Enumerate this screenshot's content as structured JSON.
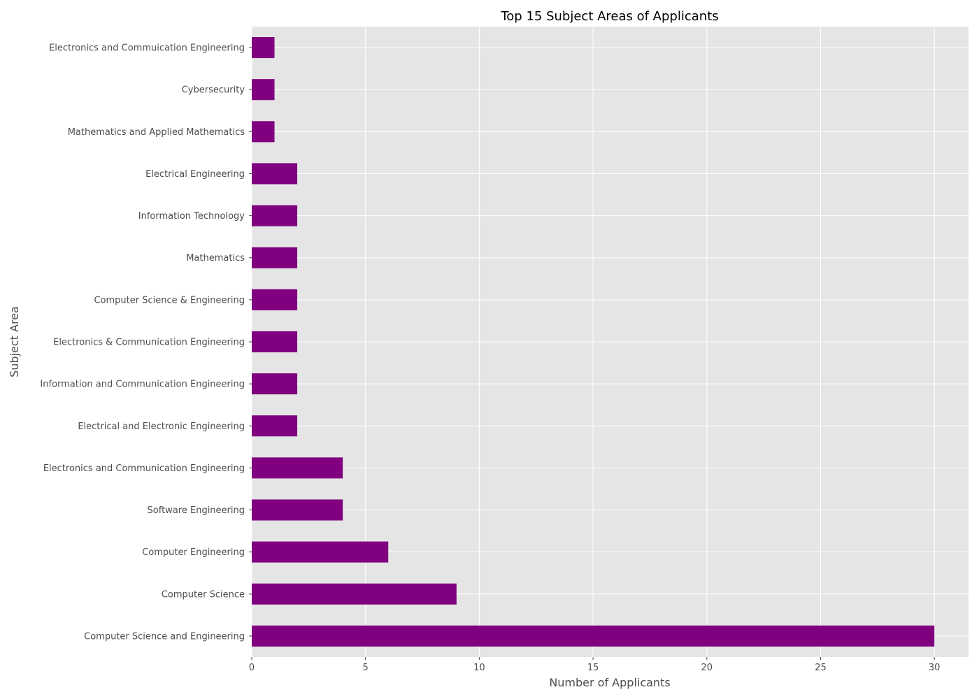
{
  "chart_data": {
    "type": "bar",
    "orientation": "horizontal",
    "title": "Top 15 Subject Areas of Applicants",
    "xlabel": "Number of Applicants",
    "ylabel": "Subject Area",
    "categories": [
      "Computer Science and Engineering",
      "Computer Science",
      "Computer Engineering",
      "Software Engineering",
      "Electronics and Communication Engineering",
      "Electrical and Electronic Engineering",
      "Information and Communication Engineering",
      "Electronics & Communication Engineering",
      "Computer Science & Engineering",
      "Mathematics",
      "Information Technology",
      "Electrical Engineering",
      "Mathematics and Applied Mathematics",
      "Cybersecurity",
      "Electronics and Commuication Engineering"
    ],
    "values": [
      30,
      9,
      6,
      4,
      4,
      2,
      2,
      2,
      2,
      2,
      2,
      2,
      1,
      1,
      1
    ],
    "xlim": [
      0,
      31.5
    ],
    "xticks": [
      0,
      5,
      10,
      15,
      20,
      25,
      30
    ],
    "grid": true,
    "colors": {
      "bar": "#800080",
      "plot_background": "#e5e5e5",
      "grid": "#ffffff",
      "text": "#4d4d4d"
    }
  }
}
